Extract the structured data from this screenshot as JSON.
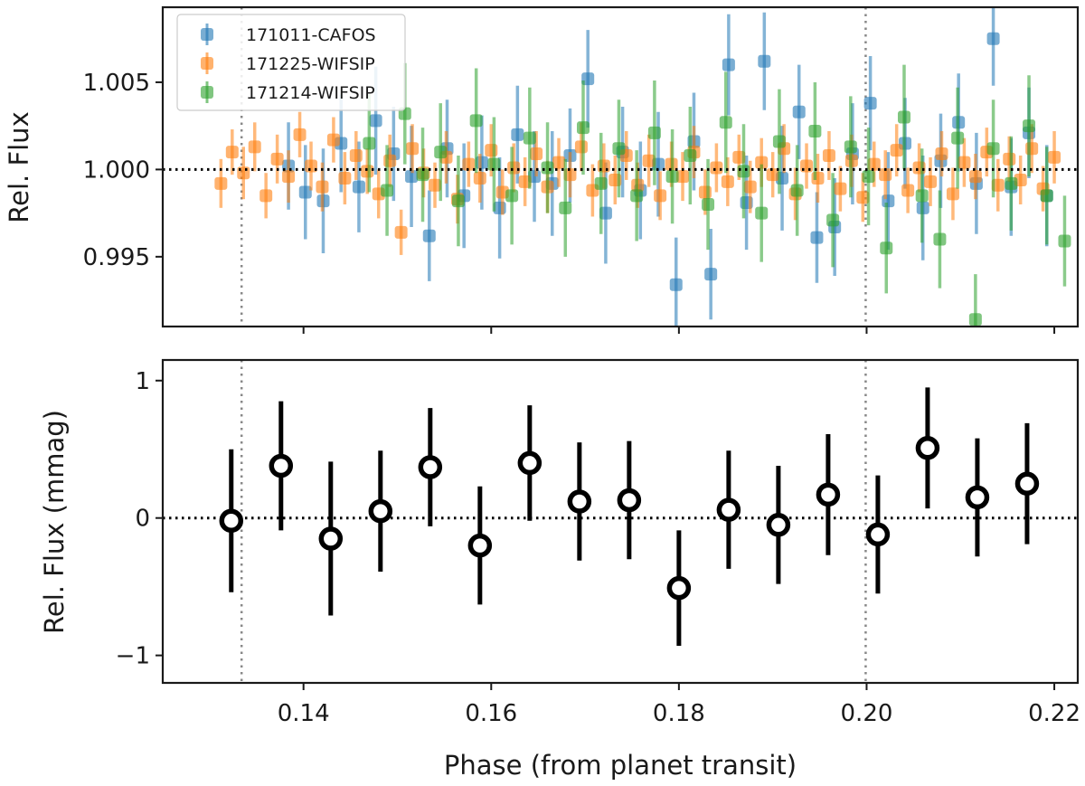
{
  "chart_data": [
    {
      "type": "scatter",
      "panel": "top",
      "xlabel": "",
      "ylabel": "Rel. Flux",
      "xlim": [
        0.125,
        0.2225
      ],
      "ylim": [
        0.991,
        1.0093
      ],
      "yticks": [
        0.995,
        1.0,
        1.005
      ],
      "ytick_labels": [
        "0.995",
        "1.000",
        "1.005"
      ],
      "xticks": [
        0.14,
        0.16,
        0.18,
        0.2,
        0.22
      ],
      "reference_line_y": 1.0,
      "vertical_markers_x": [
        0.1334,
        0.1999
      ],
      "legend_position": "top-left",
      "series": [
        {
          "name": "171011-CAFOS",
          "color": "#1f77b4",
          "x": [
            0.1384,
            0.1402,
            0.1421,
            0.144,
            0.1459,
            0.1477,
            0.1496,
            0.1515,
            0.1534,
            0.1553,
            0.1571,
            0.159,
            0.1609,
            0.1628,
            0.1646,
            0.1665,
            0.1684,
            0.1703,
            0.1722,
            0.174,
            0.1759,
            0.1778,
            0.1797,
            0.1816,
            0.1834,
            0.1853,
            0.1872,
            0.1891,
            0.191,
            0.1928,
            0.1947,
            0.1966,
            0.1985,
            0.2004,
            0.2023,
            0.2041,
            0.206,
            0.2079,
            0.2098,
            0.2117,
            0.2135,
            0.2154,
            0.2173,
            0.2192
          ],
          "y": [
            1.0002,
            0.9987,
            0.9982,
            1.0015,
            0.999,
            1.0028,
            1.0009,
            0.9996,
            0.9962,
            1.0012,
            0.9985,
            1.0004,
            0.9978,
            1.002,
            0.9996,
            0.9992,
            1.0008,
            1.0052,
            0.9975,
            1.001,
            0.9988,
            1.0003,
            0.9934,
            1.0016,
            0.994,
            1.006,
            0.9981,
            1.0062,
            0.9995,
            1.0033,
            0.9961,
            0.9967,
            1.0009,
            1.0038,
            0.9982,
            1.0015,
            0.9978,
            1.0005,
            1.0027,
            0.9992,
            1.0075,
            0.999,
            1.0021,
            0.9985
          ],
          "yerr": [
            0.0025,
            0.0027,
            0.003,
            0.0028,
            0.0026,
            0.0031,
            0.0027,
            0.0029,
            0.0026,
            0.0028,
            0.003,
            0.0027,
            0.0029,
            0.0028,
            0.0026,
            0.003,
            0.0027,
            0.0028,
            0.0029,
            0.0026,
            0.0028,
            0.003,
            0.0027,
            0.0028,
            0.0026,
            0.0029,
            0.0027,
            0.0028,
            0.003,
            0.0027,
            0.0026,
            0.0028,
            0.0029,
            0.0027,
            0.0028,
            0.0026,
            0.003,
            0.0027,
            0.0028,
            0.0029,
            0.0027,
            0.0028,
            0.0026,
            0.0029
          ]
        },
        {
          "name": "171225-WIFSIP",
          "color": "#ff7f0e",
          "x": [
            0.1312,
            0.1324,
            0.1336,
            0.1348,
            0.136,
            0.1372,
            0.1384,
            0.1396,
            0.1408,
            0.142,
            0.1432,
            0.1444,
            0.1456,
            0.1468,
            0.148,
            0.1492,
            0.1504,
            0.1516,
            0.1528,
            0.154,
            0.1552,
            0.1564,
            0.1576,
            0.1588,
            0.16,
            0.1612,
            0.1624,
            0.1636,
            0.1648,
            0.166,
            0.1672,
            0.1684,
            0.1696,
            0.1708,
            0.172,
            0.1732,
            0.1744,
            0.1756,
            0.1768,
            0.178,
            0.1792,
            0.1804,
            0.1816,
            0.1828,
            0.184,
            0.1852,
            0.1864,
            0.1876,
            0.1888,
            0.19,
            0.1912,
            0.1924,
            0.1936,
            0.1948,
            0.196,
            0.1972,
            0.1984,
            0.1996,
            0.2008,
            0.202,
            0.2032,
            0.2044,
            0.2056,
            0.2068,
            0.208,
            0.2092,
            0.2104,
            0.2116,
            0.2128,
            0.214,
            0.2152,
            0.2164,
            0.2176,
            0.2188,
            0.22
          ],
          "y": [
            0.9992,
            1.001,
            0.9998,
            1.0013,
            0.9985,
            1.0006,
            0.9996,
            1.002,
            1.0002,
            0.999,
            1.0017,
            0.9995,
            1.0008,
            0.9999,
            0.9986,
            1.0005,
            0.9964,
            1.0012,
            0.9998,
            0.9991,
            1.0007,
            0.9983,
            1.0003,
            0.9995,
            1.0011,
            0.9987,
            1.0001,
            0.9993,
            1.0009,
            0.999,
            1.0004,
            0.9997,
            1.0013,
            0.9988,
            1.0002,
            0.9994,
            1.0008,
            0.9991,
            1.0005,
            0.9985,
            1.0003,
            0.9996,
            1.001,
            0.9987,
            1.0001,
            0.9993,
            1.0007,
            0.999,
            1.0004,
            0.9997,
            1.0012,
            0.9986,
            1.0002,
            0.9995,
            1.0008,
            0.9989,
            1.0005,
            0.9984,
            1.0003,
            0.9997,
            1.0011,
            0.9988,
            1.0001,
            0.9993,
            1.0009,
            0.9986,
            1.0004,
            0.9996,
            1.001,
            0.9991,
            1.0006,
            0.9994,
            1.0012,
            0.9989,
            1.0007
          ],
          "yerr": [
            0.0014,
            0.0013,
            0.0015,
            0.0014,
            0.0013,
            0.0014,
            0.0015,
            0.0013,
            0.0014,
            0.0014,
            0.0013,
            0.0015,
            0.0014,
            0.0013,
            0.0014,
            0.0015,
            0.0013,
            0.0014,
            0.0014,
            0.0013,
            0.0015,
            0.0014,
            0.0013,
            0.0014,
            0.0015,
            0.0013,
            0.0014,
            0.0014,
            0.0013,
            0.0015,
            0.0014,
            0.0013,
            0.0014,
            0.0015,
            0.0013,
            0.0014,
            0.0014,
            0.0013,
            0.0015,
            0.0014,
            0.0013,
            0.0014,
            0.0015,
            0.0013,
            0.0014,
            0.0014,
            0.0013,
            0.0015,
            0.0014,
            0.0013,
            0.0014,
            0.0015,
            0.0013,
            0.0014,
            0.0014,
            0.0013,
            0.0015,
            0.0014,
            0.0013,
            0.0014,
            0.0015,
            0.0013,
            0.0014,
            0.0014,
            0.0013,
            0.0015,
            0.0014,
            0.0013,
            0.0014,
            0.0015,
            0.0013,
            0.0014,
            0.0014,
            0.0013,
            0.0015
          ]
        },
        {
          "name": "171214-WIFSIP",
          "color": "#2ca02c",
          "x": [
            0.147,
            0.1489,
            0.1508,
            0.1527,
            0.1546,
            0.1565,
            0.1584,
            0.1603,
            0.1622,
            0.1641,
            0.166,
            0.1679,
            0.1698,
            0.1717,
            0.1736,
            0.1755,
            0.1774,
            0.1793,
            0.1812,
            0.1831,
            0.185,
            0.1869,
            0.1888,
            0.1907,
            0.1926,
            0.1945,
            0.1964,
            0.1983,
            0.2002,
            0.2021,
            0.204,
            0.2059,
            0.2078,
            0.2097,
            0.2116,
            0.2135,
            0.2154,
            0.2173,
            0.2192,
            0.2211
          ],
          "y": [
            1.0015,
            0.9988,
            1.0032,
            0.9997,
            1.001,
            0.9982,
            1.0028,
            1.0003,
            0.9985,
            1.0018,
            1.0001,
            0.9978,
            1.0024,
            0.9992,
            1.0012,
            0.9985,
            1.0021,
            0.9996,
            1.0008,
            0.998,
            1.0027,
            0.9999,
            0.9975,
            1.0016,
            0.9988,
            1.0022,
            0.9971,
            1.0013,
            0.9996,
            0.9955,
            1.003,
            0.9985,
            0.996,
            1.0018,
            0.9914,
            1.0012,
            0.9992,
            1.0025,
            0.9985,
            0.9959
          ],
          "yerr": [
            0.0028,
            0.0026,
            0.0029,
            0.0027,
            0.0028,
            0.0026,
            0.003,
            0.0027,
            0.0028,
            0.0029,
            0.0026,
            0.0028,
            0.0027,
            0.0029,
            0.0028,
            0.0026,
            0.003,
            0.0027,
            0.0028,
            0.0026,
            0.0029,
            0.0027,
            0.0028,
            0.003,
            0.0026,
            0.0028,
            0.0027,
            0.0029,
            0.0028,
            0.0026,
            0.003,
            0.0027,
            0.0028,
            0.0029,
            0.0026,
            0.0028,
            0.0027,
            0.0029,
            0.0028,
            0.0026
          ]
        }
      ]
    },
    {
      "type": "scatter",
      "panel": "bottom",
      "xlabel": "Phase (from planet transit)",
      "ylabel": "Rel. Flux (mmag)",
      "xlim": [
        0.125,
        0.2225
      ],
      "ylim": [
        -1.2,
        1.15
      ],
      "yticks": [
        -1,
        0,
        1
      ],
      "ytick_labels": [
        "−1",
        "0",
        "1"
      ],
      "xticks": [
        0.14,
        0.16,
        0.18,
        0.2,
        0.22
      ],
      "xtick_labels": [
        "0.14",
        "0.16",
        "0.18",
        "0.20",
        "0.22"
      ],
      "reference_line_y": 0,
      "vertical_markers_x": [
        0.1334,
        0.1999
      ],
      "series": [
        {
          "name": "binned",
          "color": "#000000",
          "x": [
            0.1323,
            0.1376,
            0.1429,
            0.1482,
            0.1535,
            0.1588,
            0.1641,
            0.1694,
            0.1747,
            0.18,
            0.1853,
            0.1906,
            0.1959,
            0.2012,
            0.2065,
            0.2118,
            0.2171
          ],
          "y": [
            -0.02,
            0.38,
            -0.15,
            0.05,
            0.37,
            -0.2,
            0.4,
            0.12,
            0.13,
            -0.51,
            0.06,
            -0.05,
            0.17,
            -0.12,
            0.51,
            0.15,
            0.25
          ],
          "yerr": [
            0.52,
            0.47,
            0.56,
            0.44,
            0.43,
            0.43,
            0.42,
            0.43,
            0.43,
            0.42,
            0.43,
            0.43,
            0.44,
            0.43,
            0.44,
            0.43,
            0.44
          ]
        }
      ]
    }
  ]
}
